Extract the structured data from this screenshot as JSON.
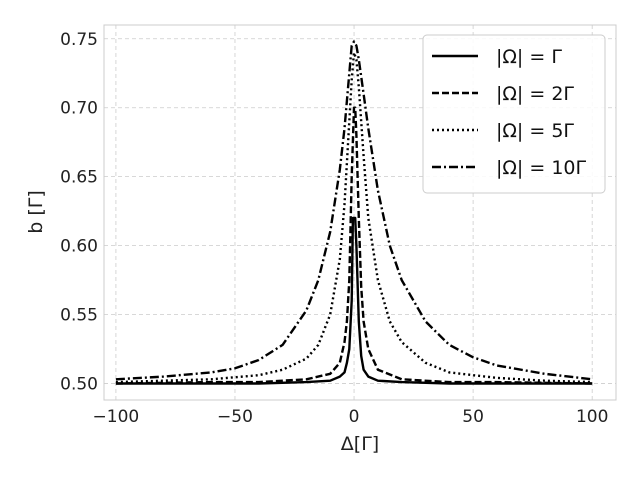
{
  "chart_data": {
    "type": "line",
    "title": "",
    "xlabel": "Δ[Γ]",
    "ylabel": "b [Γ]",
    "xlim": [
      -105,
      110
    ],
    "ylim": [
      0.488,
      0.76
    ],
    "xticks": [
      -100,
      -50,
      0,
      50,
      100
    ],
    "xtick_labels": [
      "−100",
      "−50",
      "0",
      "50",
      "100"
    ],
    "yticks": [
      0.5,
      0.55,
      0.6,
      0.65,
      0.7,
      0.75
    ],
    "ytick_labels": [
      "0.50",
      "0.55",
      "0.60",
      "0.65",
      "0.70",
      "0.75"
    ],
    "grid": true,
    "legend_position": "top-right",
    "series": [
      {
        "name": "|Ω| = Γ",
        "style": "solid",
        "color": "#000000",
        "x": [
          -100,
          -60,
          -40,
          -20,
          -10,
          -6,
          -4,
          -3,
          -2,
          -1,
          -0.5,
          0,
          0.5,
          1,
          2,
          3,
          4,
          6,
          10,
          20,
          40,
          60,
          100
        ],
        "y": [
          0.5,
          0.5,
          0.5,
          0.501,
          0.502,
          0.505,
          0.508,
          0.515,
          0.525,
          0.56,
          0.62,
          0.62,
          0.62,
          0.6,
          0.545,
          0.52,
          0.51,
          0.505,
          0.502,
          0.501,
          0.5,
          0.5,
          0.5
        ]
      },
      {
        "name": "|Ω| = 2Γ",
        "style": "dashed",
        "color": "#000000",
        "x": [
          -100,
          -60,
          -40,
          -20,
          -10,
          -6,
          -4,
          -3,
          -2,
          -1,
          0,
          0.5,
          1,
          2,
          3,
          4,
          6,
          10,
          20,
          40,
          60,
          100
        ],
        "y": [
          0.5,
          0.501,
          0.501,
          0.503,
          0.507,
          0.515,
          0.53,
          0.545,
          0.575,
          0.65,
          0.7,
          0.7,
          0.68,
          0.62,
          0.57,
          0.545,
          0.525,
          0.51,
          0.503,
          0.501,
          0.501,
          0.5
        ]
      },
      {
        "name": "|Ω| = 5Γ",
        "style": "dotted",
        "color": "#000000",
        "x": [
          -100,
          -80,
          -60,
          -40,
          -30,
          -20,
          -15,
          -10,
          -6,
          -4,
          -2,
          -1,
          0,
          1,
          2,
          4,
          6,
          10,
          15,
          20,
          30,
          40,
          60,
          80,
          100
        ],
        "y": [
          0.501,
          0.502,
          0.503,
          0.506,
          0.51,
          0.518,
          0.528,
          0.55,
          0.59,
          0.63,
          0.69,
          0.72,
          0.74,
          0.735,
          0.715,
          0.665,
          0.62,
          0.575,
          0.545,
          0.53,
          0.515,
          0.508,
          0.504,
          0.502,
          0.501
        ]
      },
      {
        "name": "|Ω| = 10Γ",
        "style": "dashdot",
        "color": "#000000",
        "x": [
          -100,
          -80,
          -60,
          -50,
          -40,
          -30,
          -20,
          -15,
          -10,
          -6,
          -4,
          -2,
          -1,
          0,
          1,
          2,
          4,
          6,
          10,
          15,
          20,
          30,
          40,
          50,
          60,
          80,
          100
        ],
        "y": [
          0.503,
          0.505,
          0.508,
          0.511,
          0.517,
          0.528,
          0.553,
          0.575,
          0.61,
          0.655,
          0.685,
          0.725,
          0.745,
          0.748,
          0.745,
          0.735,
          0.71,
          0.685,
          0.64,
          0.6,
          0.575,
          0.545,
          0.528,
          0.519,
          0.513,
          0.507,
          0.503
        ]
      }
    ]
  }
}
